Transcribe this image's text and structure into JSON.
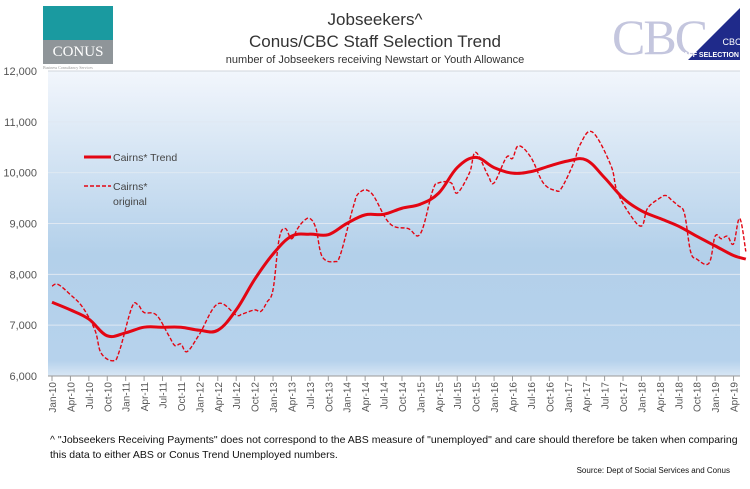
{
  "header": {
    "title": "Jobseekers^",
    "title2": "Conus/CBC Staff Selection Trend",
    "subtitle": "number of Jobseekers receiving Newstart or Youth Allowance"
  },
  "logos": {
    "conus": "CONUS",
    "conus_sub": "Business Consultancy Services",
    "cbc": "CBC",
    "cbc_badge": "CBC",
    "cbc_badge_sub": "STAFF SELECTION"
  },
  "footer": {
    "note": "^ \"Jobseekers Receiving Payments\" does not correspond to the ABS measure of \"unemployed\" and care should therefore be taken when comparing this data to either ABS or Conus Trend Unemployed numbers.",
    "source": "Source: Dept of Social Services and Conus"
  },
  "colors": {
    "series": "#e30613",
    "bg_top": "#eef4fb",
    "bg_mid": "#b3d0ea"
  },
  "chart_data": {
    "type": "line",
    "title": "Jobseekers^ Conus/CBC Staff Selection Trend",
    "ylim": [
      6000,
      12000
    ],
    "yticks": [
      6000,
      7000,
      8000,
      9000,
      10000,
      11000,
      12000
    ],
    "ytick_labels": [
      "6,000",
      "7,000",
      "8,000",
      "9,000",
      "10,000",
      "11,000",
      "12,000"
    ],
    "x_unit": "month index from Jan-10",
    "xticks": [
      "Jan-10",
      "Apr-10",
      "Jul-10",
      "Oct-10",
      "Jan-11",
      "Apr-11",
      "Jul-11",
      "Oct-11",
      "Jan-12",
      "Apr-12",
      "Jul-12",
      "Oct-12",
      "Jan-13",
      "Apr-13",
      "Jul-13",
      "Oct-13",
      "Jan-14",
      "Apr-14",
      "Jul-14",
      "Oct-14",
      "Jan-15",
      "Apr-15",
      "Jul-15",
      "Oct-15",
      "Jan-16",
      "Apr-16",
      "Jul-16",
      "Oct-16",
      "Jan-17",
      "Apr-17",
      "Jul-17",
      "Oct-17",
      "Jan-18",
      "Apr-18",
      "Jul-18",
      "Oct-18",
      "Jan-19",
      "Apr-19"
    ],
    "legend_position": "left-upper",
    "series": [
      {
        "name": "Cairns* Trend",
        "style": "solid",
        "points": [
          [
            0,
            7450
          ],
          [
            3,
            7300
          ],
          [
            6,
            7120
          ],
          [
            9,
            6790
          ],
          [
            12,
            6850
          ],
          [
            15,
            6960
          ],
          [
            18,
            6960
          ],
          [
            21,
            6960
          ],
          [
            24,
            6900
          ],
          [
            27,
            6900
          ],
          [
            30,
            7300
          ],
          [
            33,
            7900
          ],
          [
            36,
            8400
          ],
          [
            39,
            8750
          ],
          [
            42,
            8790
          ],
          [
            45,
            8780
          ],
          [
            48,
            9000
          ],
          [
            51,
            9170
          ],
          [
            54,
            9180
          ],
          [
            57,
            9300
          ],
          [
            60,
            9380
          ],
          [
            63,
            9600
          ],
          [
            66,
            10100
          ],
          [
            69,
            10300
          ],
          [
            72,
            10100
          ],
          [
            75,
            9990
          ],
          [
            78,
            10020
          ],
          [
            81,
            10130
          ],
          [
            84,
            10230
          ],
          [
            87,
            10250
          ],
          [
            90,
            9900
          ],
          [
            93,
            9500
          ],
          [
            96,
            9250
          ],
          [
            99,
            9100
          ],
          [
            102,
            8950
          ],
          [
            105,
            8750
          ],
          [
            108,
            8560
          ],
          [
            111,
            8370
          ],
          [
            113,
            8300
          ]
        ]
      },
      {
        "name": "Cairns* original",
        "style": "dashed",
        "points": [
          [
            0,
            7770
          ],
          [
            1,
            7800
          ],
          [
            3,
            7600
          ],
          [
            5,
            7350
          ],
          [
            7,
            6900
          ],
          [
            8,
            6450
          ],
          [
            10,
            6300
          ],
          [
            11,
            6500
          ],
          [
            13,
            7350
          ],
          [
            14,
            7400
          ],
          [
            15,
            7250
          ],
          [
            17,
            7200
          ],
          [
            19,
            6800
          ],
          [
            20,
            6600
          ],
          [
            21,
            6630
          ],
          [
            22,
            6480
          ],
          [
            24,
            6820
          ],
          [
            27,
            7420
          ],
          [
            30,
            7200
          ],
          [
            31,
            7220
          ],
          [
            33,
            7300
          ],
          [
            34,
            7270
          ],
          [
            35,
            7450
          ],
          [
            36,
            7700
          ],
          [
            37,
            8700
          ],
          [
            38,
            8900
          ],
          [
            39,
            8700
          ],
          [
            40,
            8900
          ],
          [
            41,
            9050
          ],
          [
            42,
            9100
          ],
          [
            43,
            8900
          ],
          [
            44,
            8350
          ],
          [
            46,
            8250
          ],
          [
            47,
            8400
          ],
          [
            49,
            9300
          ],
          [
            50,
            9600
          ],
          [
            52,
            9600
          ],
          [
            55,
            9000
          ],
          [
            58,
            8900
          ],
          [
            60,
            8800
          ],
          [
            62,
            9650
          ],
          [
            63,
            9800
          ],
          [
            65,
            9800
          ],
          [
            66,
            9600
          ],
          [
            68,
            10000
          ],
          [
            69,
            10400
          ],
          [
            71,
            9950
          ],
          [
            72,
            9800
          ],
          [
            74,
            10300
          ],
          [
            75,
            10280
          ],
          [
            76,
            10530
          ],
          [
            78,
            10300
          ],
          [
            80,
            9800
          ],
          [
            82,
            9650
          ],
          [
            83,
            9700
          ],
          [
            85,
            10200
          ],
          [
            86,
            10550
          ],
          [
            88,
            10800
          ],
          [
            91,
            10150
          ],
          [
            92,
            9650
          ],
          [
            94,
            9200
          ],
          [
            96,
            8950
          ],
          [
            97,
            9300
          ],
          [
            99,
            9500
          ],
          [
            100,
            9550
          ],
          [
            101,
            9450
          ],
          [
            102,
            9350
          ],
          [
            103,
            9200
          ],
          [
            104,
            8450
          ],
          [
            105,
            8300
          ],
          [
            107,
            8220
          ],
          [
            108,
            8750
          ],
          [
            109,
            8700
          ],
          [
            110,
            8750
          ],
          [
            111,
            8600
          ],
          [
            112,
            9100
          ],
          [
            113,
            8450
          ]
        ]
      }
    ],
    "legend": {
      "trend": "Cairns* Trend",
      "original_line1": "Cairns*",
      "original_line2": "original"
    }
  }
}
